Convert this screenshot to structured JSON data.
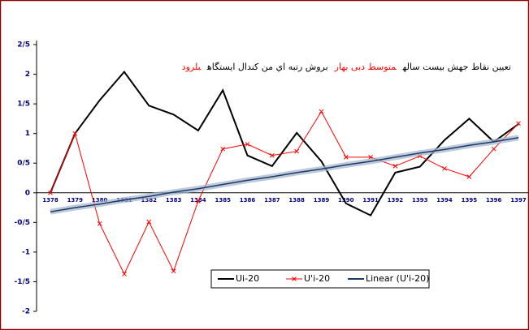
{
  "chart_data": {
    "type": "line",
    "title_parts": [
      {
        "text": "تعیین نقاط جهش بیست ساله",
        "color": "#000000"
      },
      {
        "text": "متوسط دبی بهار",
        "color": "#ff0000"
      },
      {
        "text": "بروش رتبه اي من کندال ایستگاه",
        "color": "#000000"
      },
      {
        "text": "بلرود",
        "color": "#ff0000"
      }
    ],
    "categories": [
      "1378",
      "1379",
      "1380",
      "1381",
      "1382",
      "1383",
      "1384",
      "1385",
      "1386",
      "1387",
      "1388",
      "1389",
      "1390",
      "1391",
      "1392",
      "1393",
      "1394",
      "1395",
      "1396",
      "1397"
    ],
    "series": [
      {
        "name": "Ui-20",
        "color": "#000000",
        "values": [
          0,
          1.0,
          1.56,
          2.04,
          1.47,
          1.32,
          1.05,
          1.73,
          0.63,
          0.45,
          1.01,
          0.53,
          -0.18,
          -0.38,
          0.34,
          0.44,
          0.89,
          1.25,
          0.86,
          1.16
        ]
      },
      {
        "name": "U'i-20",
        "color": "#ff0000",
        "marker": "x",
        "values": [
          0,
          1.0,
          -0.52,
          -1.37,
          -0.49,
          -1.32,
          -0.14,
          0.74,
          0.82,
          0.63,
          0.7,
          1.37,
          0.6,
          0.6,
          0.45,
          0.62,
          0.41,
          0.27,
          0.74,
          1.17
        ]
      },
      {
        "name": "Linear (U'i-20)",
        "color": "#1f3864",
        "trend": true,
        "values": [
          -0.32,
          -0.25,
          -0.19,
          -0.12,
          -0.06,
          0.01,
          0.07,
          0.14,
          0.21,
          0.27,
          0.34,
          0.4,
          0.47,
          0.53,
          0.6,
          0.67,
          0.73,
          0.8,
          0.86,
          0.93
        ]
      }
    ],
    "ylim": [
      -2,
      2.5
    ],
    "yticks": [
      -2,
      {
        "value": -1.5,
        "label": "-1/5"
      },
      -1,
      {
        "value": -0.5,
        "label": "-0/5"
      },
      0,
      {
        "value": 0.5,
        "label": "0/5"
      },
      1,
      {
        "value": 1.5,
        "label": "1/5"
      },
      2,
      {
        "value": 2.5,
        "label": "2/5"
      }
    ]
  }
}
